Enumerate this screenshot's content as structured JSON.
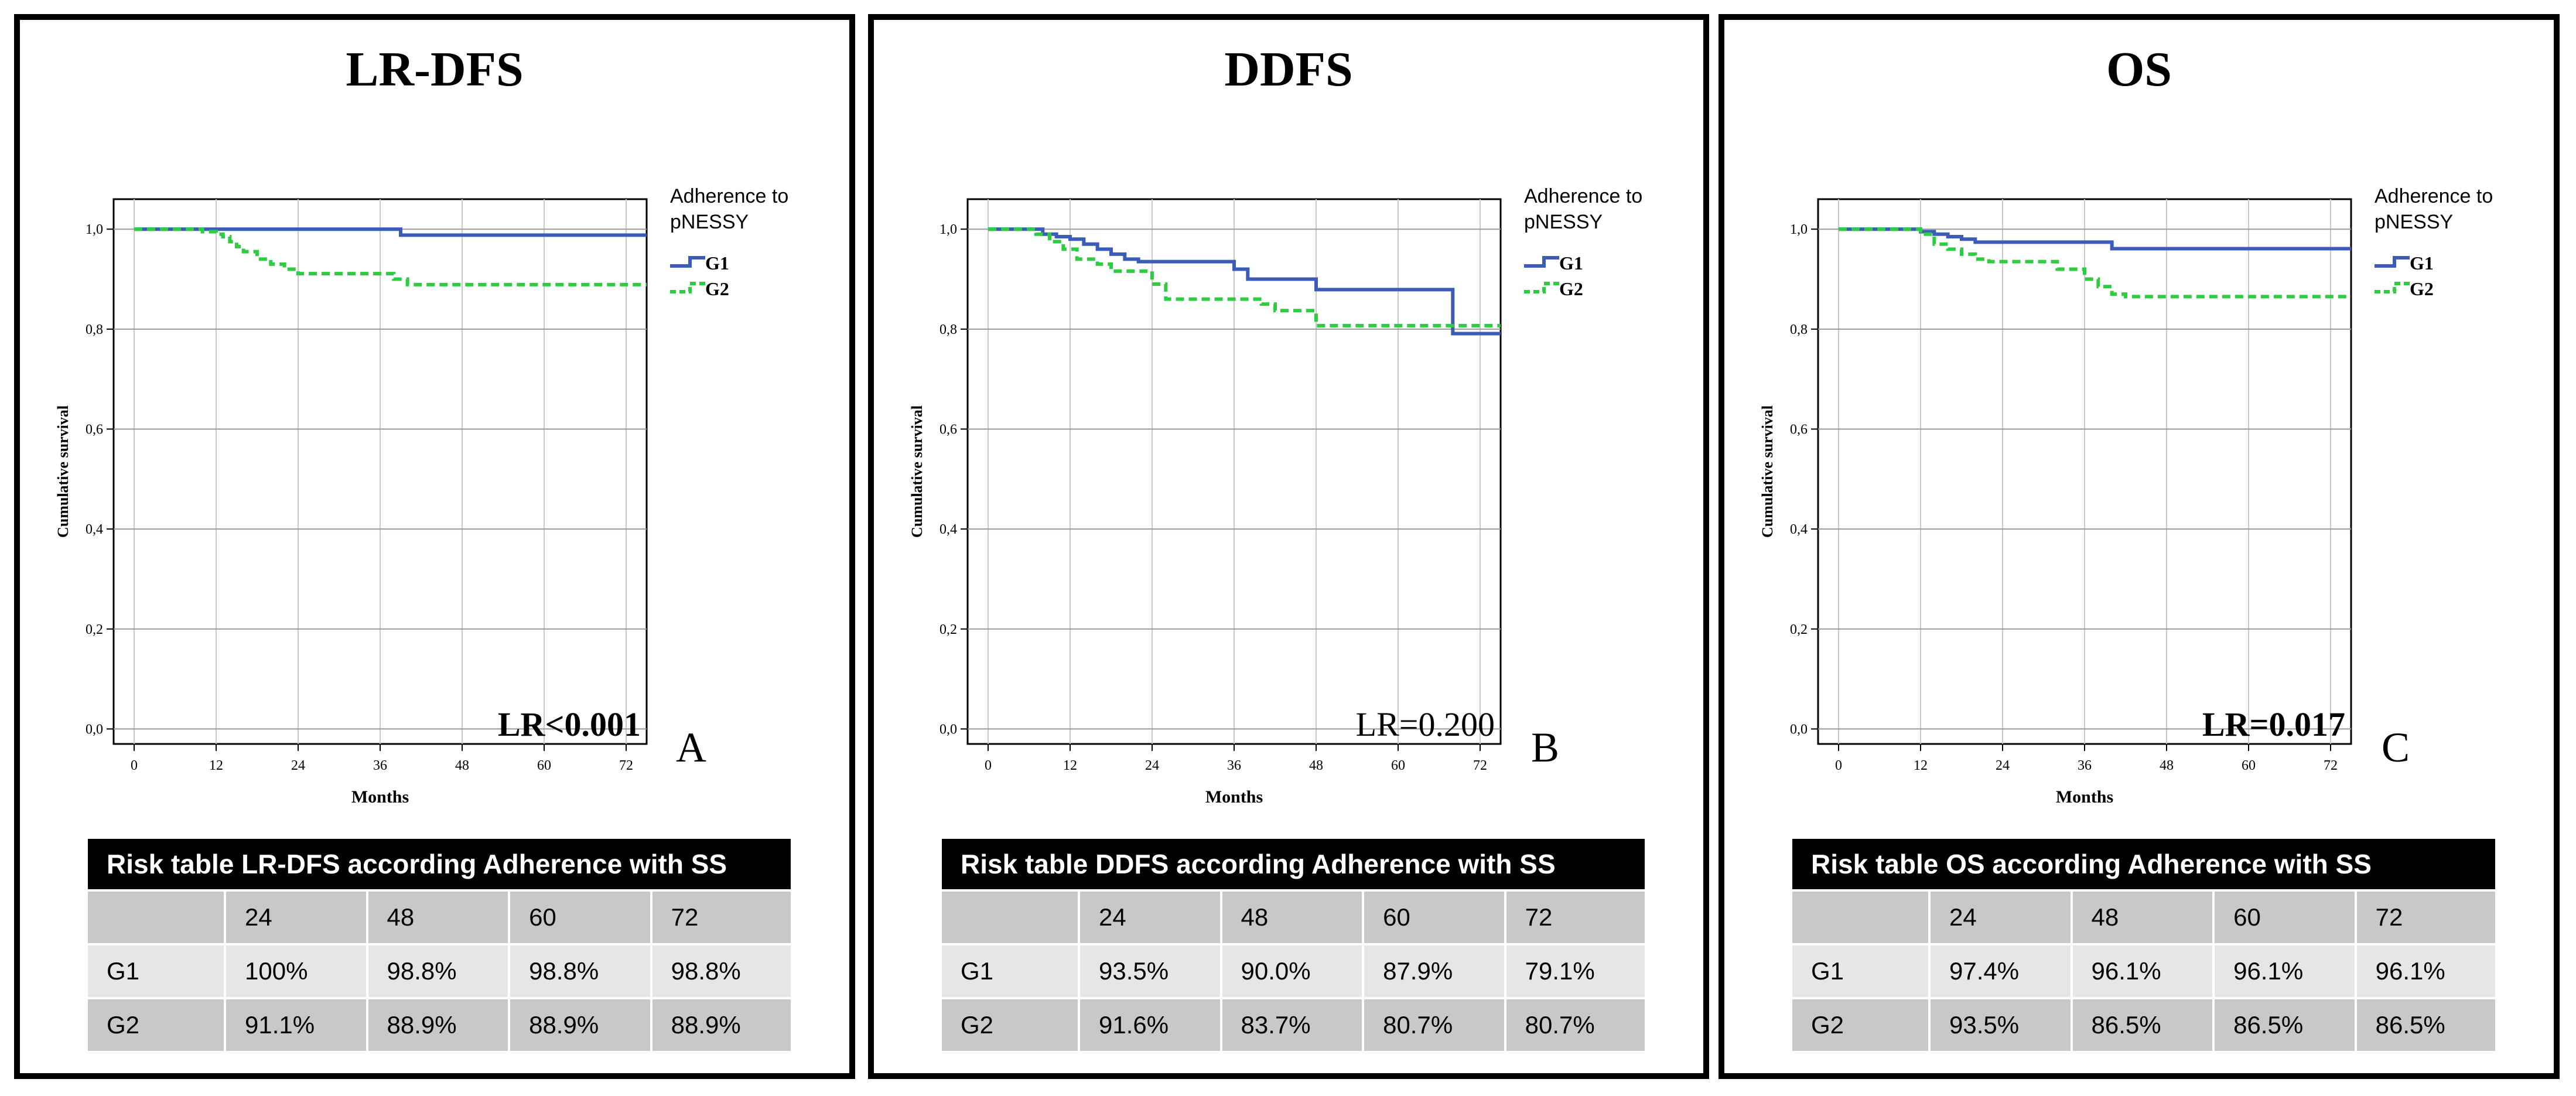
{
  "legend_title_line1": "Adherence to",
  "legend_title_line2": "pNESSY",
  "legend_colors": {
    "G1": "#3b5cb8",
    "G2": "#2ecc40"
  },
  "xlabel": "Months",
  "ylabel": "Cumulative survival",
  "x_ticks": [
    "0",
    "12",
    "24",
    "36",
    "48",
    "60",
    "72"
  ],
  "y_ticks": [
    "0,0",
    "0,2",
    "0,4",
    "0,6",
    "0,8",
    "1,0"
  ],
  "panels": [
    {
      "title": "LR-DFS",
      "stat": "LR<0.001",
      "stat_bold": true,
      "letter": "A",
      "table": {
        "title": "Risk table LR-DFS according Adherence with SS",
        "columns": [
          "",
          "24",
          "48",
          "60",
          "72"
        ],
        "rows": [
          {
            "label": "G1",
            "values": [
              "100%",
              "98.8%",
              "98.8%",
              "98.8%"
            ]
          },
          {
            "label": "G2",
            "values": [
              "91.1%",
              "88.9%",
              "88.9%",
              "88.9%"
            ]
          }
        ]
      }
    },
    {
      "title": "DDFS",
      "stat": "LR=0.200",
      "stat_bold": false,
      "letter": "B",
      "table": {
        "title": "Risk table DDFS according Adherence with SS",
        "columns": [
          "",
          "24",
          "48",
          "60",
          "72"
        ],
        "rows": [
          {
            "label": "G1",
            "values": [
              "93.5%",
              "90.0%",
              "87.9%",
              "79.1%"
            ]
          },
          {
            "label": "G2",
            "values": [
              "91.6%",
              "83.7%",
              "80.7%",
              "80.7%"
            ]
          }
        ]
      }
    },
    {
      "title": "OS",
      "stat": "LR=0.017",
      "stat_bold": true,
      "letter": "C",
      "table": {
        "title": "Risk table OS according Adherence with SS",
        "columns": [
          "",
          "24",
          "48",
          "60",
          "72"
        ],
        "rows": [
          {
            "label": "G1",
            "values": [
              "97.4%",
              "96.1%",
              "96.1%",
              "96.1%"
            ]
          },
          {
            "label": "G2",
            "values": [
              "93.5%",
              "86.5%",
              "86.5%",
              "86.5%"
            ]
          }
        ]
      }
    }
  ],
  "chart_data": [
    {
      "type": "line",
      "step": true,
      "title": "LR-DFS",
      "xlabel": "Months",
      "ylabel": "Cumulative survival",
      "xlim": [
        -3,
        75
      ],
      "ylim": [
        -0.03,
        1.06
      ],
      "grid": true,
      "legend": "right",
      "series": [
        {
          "name": "G1",
          "x": [
            0,
            39,
            75
          ],
          "y": [
            1.0,
            0.988,
            0.988
          ]
        },
        {
          "name": "G2",
          "x": [
            0,
            10,
            12,
            13,
            14,
            15,
            16,
            18,
            20,
            22,
            24,
            38,
            40,
            75
          ],
          "y": [
            1.0,
            0.995,
            0.99,
            0.985,
            0.975,
            0.965,
            0.955,
            0.94,
            0.93,
            0.92,
            0.911,
            0.9,
            0.889,
            0.889
          ]
        }
      ]
    },
    {
      "type": "line",
      "step": true,
      "title": "DDFS",
      "xlabel": "Months",
      "ylabel": "Cumulative survival",
      "xlim": [
        -3,
        75
      ],
      "ylim": [
        -0.03,
        1.06
      ],
      "grid": true,
      "legend": "right",
      "series": [
        {
          "name": "G1",
          "x": [
            0,
            8,
            10,
            12,
            14,
            16,
            18,
            20,
            22,
            24,
            36,
            38,
            40,
            48,
            68,
            75
          ],
          "y": [
            1.0,
            0.99,
            0.985,
            0.98,
            0.97,
            0.96,
            0.95,
            0.94,
            0.935,
            0.935,
            0.92,
            0.9,
            0.9,
            0.879,
            0.791,
            0.791
          ]
        },
        {
          "name": "G2",
          "x": [
            0,
            7,
            9,
            11,
            13,
            16,
            18,
            22,
            24,
            26,
            36,
            40,
            42,
            48,
            75
          ],
          "y": [
            1.0,
            0.99,
            0.975,
            0.96,
            0.94,
            0.93,
            0.916,
            0.916,
            0.89,
            0.86,
            0.86,
            0.85,
            0.837,
            0.807,
            0.807
          ]
        }
      ]
    },
    {
      "type": "line",
      "step": true,
      "title": "OS",
      "xlabel": "Months",
      "ylabel": "Cumulative survival",
      "xlim": [
        -3,
        75
      ],
      "ylim": [
        -0.03,
        1.06
      ],
      "grid": true,
      "legend": "right",
      "series": [
        {
          "name": "G1",
          "x": [
            0,
            12,
            14,
            16,
            18,
            20,
            24,
            34,
            40,
            75
          ],
          "y": [
            1.0,
            0.995,
            0.99,
            0.985,
            0.98,
            0.974,
            0.974,
            0.974,
            0.961,
            0.961
          ]
        },
        {
          "name": "G2",
          "x": [
            0,
            12,
            14,
            16,
            18,
            20,
            22,
            24,
            32,
            36,
            38,
            40,
            42,
            75
          ],
          "y": [
            1.0,
            0.99,
            0.97,
            0.96,
            0.95,
            0.94,
            0.935,
            0.935,
            0.92,
            0.9,
            0.885,
            0.87,
            0.865,
            0.865
          ]
        }
      ]
    }
  ]
}
